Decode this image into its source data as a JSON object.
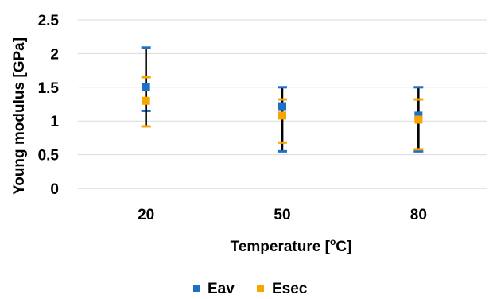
{
  "chart_data": {
    "type": "scatter",
    "categories": [
      "20",
      "50",
      "80"
    ],
    "xlabel_main": "Temperature [",
    "xlabel_sup": "o",
    "xlabel_end": "C]",
    "ylabel": "Young modulus [GPa]",
    "ylim": [
      0,
      2.5
    ],
    "yticks": [
      0,
      0.5,
      1,
      1.5,
      2,
      2.5
    ],
    "ytick_labels": [
      "0",
      "0.5",
      "1",
      "1.5",
      "2",
      "2.5"
    ],
    "grid": true,
    "legend_position": "bottom",
    "series": [
      {
        "name": "Eav",
        "color": "#1E6FC6",
        "values": [
          1.5,
          1.22,
          1.08
        ],
        "err_low": [
          1.15,
          0.55,
          0.55
        ],
        "err_high": [
          2.09,
          1.5,
          1.5
        ]
      },
      {
        "name": "Esec",
        "color": "#F7A600",
        "values": [
          1.3,
          1.08,
          1.02
        ],
        "err_low": [
          0.92,
          0.68,
          0.58
        ],
        "err_high": [
          1.65,
          1.32,
          1.32
        ]
      }
    ]
  }
}
